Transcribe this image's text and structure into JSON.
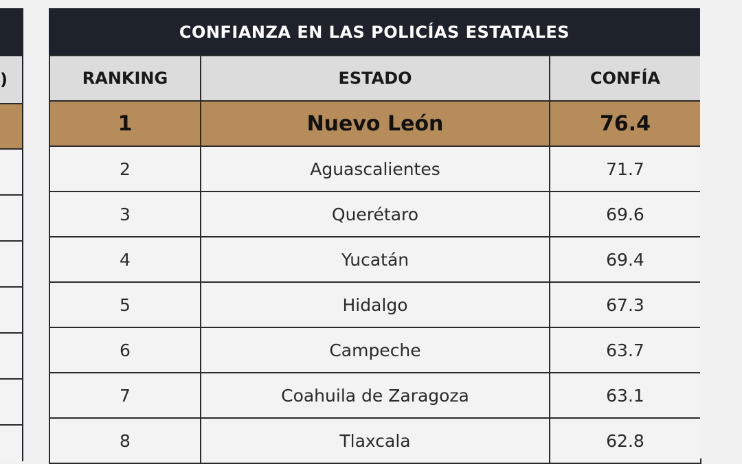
{
  "chart_data": {
    "type": "table",
    "title": "CONFIANZA EN LAS POLICÍAS ESTATALES",
    "columns": [
      "RANKING",
      "ESTADO",
      "CONFÍA"
    ],
    "rows": [
      {
        "ranking": "1",
        "estado": "Nuevo León",
        "confia": "76.4"
      },
      {
        "ranking": "2",
        "estado": "Aguascalientes",
        "confia": "71.7"
      },
      {
        "ranking": "3",
        "estado": "Querétaro",
        "confia": "69.6"
      },
      {
        "ranking": "4",
        "estado": "Yucatán",
        "confia": "69.4"
      },
      {
        "ranking": "5",
        "estado": "Hidalgo",
        "confia": "67.3"
      },
      {
        "ranking": "6",
        "estado": "Campeche",
        "confia": "63.7"
      },
      {
        "ranking": "7",
        "estado": "Coahuila de Zaragoza",
        "confia": "63.1"
      },
      {
        "ranking": "8",
        "estado": "Tlaxcala",
        "confia": "62.8"
      }
    ],
    "colors": {
      "header_bg": "#1e232b",
      "highlight_row": "#b68c5a",
      "column_header_bg": "#dcdcdc"
    }
  }
}
